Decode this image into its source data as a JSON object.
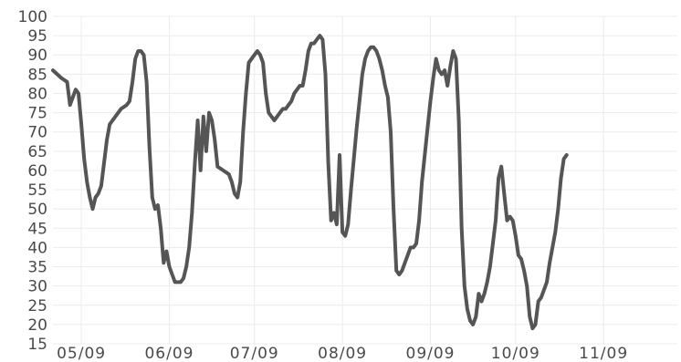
{
  "chart_data": {
    "type": "line",
    "title": "",
    "xlabel": "",
    "ylabel": "",
    "ylim": [
      15,
      100
    ],
    "y_ticks": [
      15,
      20,
      25,
      30,
      35,
      40,
      45,
      50,
      55,
      60,
      65,
      70,
      75,
      80,
      85,
      90,
      95,
      100
    ],
    "x_range": [
      0,
      220
    ],
    "x_tick_labels": [
      {
        "x": 10,
        "label": "05/09"
      },
      {
        "x": 41,
        "label": "06/09"
      },
      {
        "x": 71,
        "label": "07/09"
      },
      {
        "x": 102,
        "label": "08/09"
      },
      {
        "x": 133,
        "label": "09/09"
      },
      {
        "x": 163,
        "label": "10/09"
      },
      {
        "x": 194,
        "label": "11/09"
      }
    ],
    "grid": true,
    "line_color": "#555555",
    "series": [
      {
        "values": [
          [
            0,
            86
          ],
          [
            3,
            84
          ],
          [
            5,
            83
          ],
          [
            6,
            77
          ],
          [
            8,
            81
          ],
          [
            9,
            80
          ],
          [
            10,
            72
          ],
          [
            11,
            63
          ],
          [
            12,
            57
          ],
          [
            13,
            53
          ],
          [
            14,
            50
          ],
          [
            15,
            53
          ],
          [
            16,
            54
          ],
          [
            17,
            56
          ],
          [
            18,
            62
          ],
          [
            19,
            68
          ],
          [
            20,
            72
          ],
          [
            22,
            74
          ],
          [
            24,
            76
          ],
          [
            26,
            77
          ],
          [
            27,
            78
          ],
          [
            28,
            83
          ],
          [
            29,
            89
          ],
          [
            30,
            91
          ],
          [
            31,
            91
          ],
          [
            32,
            90
          ],
          [
            33,
            83
          ],
          [
            34,
            66
          ],
          [
            35,
            53
          ],
          [
            36,
            50
          ],
          [
            37,
            51
          ],
          [
            38,
            45
          ],
          [
            39,
            36
          ],
          [
            40,
            39
          ],
          [
            41,
            35
          ],
          [
            42,
            33
          ],
          [
            43,
            31
          ],
          [
            45,
            31
          ],
          [
            46,
            32
          ],
          [
            47,
            35
          ],
          [
            48,
            40
          ],
          [
            49,
            49
          ],
          [
            50,
            62
          ],
          [
            51,
            73
          ],
          [
            52,
            60
          ],
          [
            53,
            74
          ],
          [
            54,
            65
          ],
          [
            55,
            75
          ],
          [
            56,
            73
          ],
          [
            57,
            68
          ],
          [
            58,
            61
          ],
          [
            60,
            60
          ],
          [
            62,
            59
          ],
          [
            63,
            57
          ],
          [
            64,
            54
          ],
          [
            65,
            53
          ],
          [
            66,
            57
          ],
          [
            67,
            70
          ],
          [
            68,
            80
          ],
          [
            69,
            88
          ],
          [
            70,
            89
          ],
          [
            71,
            90
          ],
          [
            72,
            91
          ],
          [
            73,
            90
          ],
          [
            74,
            88
          ],
          [
            75,
            80
          ],
          [
            76,
            75
          ],
          [
            77,
            74
          ],
          [
            78,
            73
          ],
          [
            79,
            74
          ],
          [
            80,
            75
          ],
          [
            81,
            76
          ],
          [
            82,
            76
          ],
          [
            83,
            77
          ],
          [
            84,
            78
          ],
          [
            85,
            80
          ],
          [
            86,
            81
          ],
          [
            87,
            82
          ],
          [
            88,
            82
          ],
          [
            89,
            86
          ],
          [
            90,
            91
          ],
          [
            91,
            93
          ],
          [
            92,
            93
          ],
          [
            93,
            94
          ],
          [
            94,
            95
          ],
          [
            95,
            94
          ],
          [
            96,
            85
          ],
          [
            97,
            62
          ],
          [
            98,
            47
          ],
          [
            99,
            49
          ],
          [
            100,
            46
          ],
          [
            101,
            64
          ],
          [
            102,
            44
          ],
          [
            103,
            43
          ],
          [
            104,
            46
          ],
          [
            105,
            55
          ],
          [
            106,
            63
          ],
          [
            107,
            71
          ],
          [
            108,
            78
          ],
          [
            109,
            85
          ],
          [
            110,
            89
          ],
          [
            111,
            91
          ],
          [
            112,
            92
          ],
          [
            113,
            92
          ],
          [
            114,
            91
          ],
          [
            115,
            89
          ],
          [
            116,
            86
          ],
          [
            117,
            82
          ],
          [
            118,
            79
          ],
          [
            119,
            70
          ],
          [
            120,
            50
          ],
          [
            121,
            34
          ],
          [
            122,
            33
          ],
          [
            123,
            34
          ],
          [
            124,
            36
          ],
          [
            125,
            38
          ],
          [
            126,
            40
          ],
          [
            127,
            40
          ],
          [
            128,
            41
          ],
          [
            129,
            47
          ],
          [
            130,
            57
          ],
          [
            131,
            64
          ],
          [
            132,
            71
          ],
          [
            133,
            78
          ],
          [
            134,
            84
          ],
          [
            135,
            89
          ],
          [
            136,
            86
          ],
          [
            137,
            85
          ],
          [
            138,
            86
          ],
          [
            139,
            82
          ],
          [
            140,
            87
          ],
          [
            141,
            91
          ],
          [
            142,
            89
          ],
          [
            143,
            73
          ],
          [
            144,
            45
          ],
          [
            145,
            30
          ],
          [
            146,
            24
          ],
          [
            147,
            21
          ],
          [
            148,
            20
          ],
          [
            149,
            22
          ],
          [
            150,
            28
          ],
          [
            151,
            26
          ],
          [
            152,
            28
          ],
          [
            153,
            31
          ],
          [
            154,
            35
          ],
          [
            155,
            41
          ],
          [
            156,
            47
          ],
          [
            157,
            58
          ],
          [
            158,
            61
          ],
          [
            159,
            54
          ],
          [
            160,
            47
          ],
          [
            161,
            48
          ],
          [
            162,
            47
          ],
          [
            163,
            43
          ],
          [
            164,
            38
          ],
          [
            165,
            37
          ],
          [
            166,
            34
          ],
          [
            167,
            30
          ],
          [
            168,
            22
          ],
          [
            169,
            19
          ],
          [
            170,
            20
          ],
          [
            171,
            26
          ],
          [
            172,
            27
          ],
          [
            173,
            29
          ],
          [
            174,
            31
          ],
          [
            175,
            36
          ],
          [
            176,
            40
          ],
          [
            177,
            44
          ],
          [
            178,
            50
          ],
          [
            179,
            58
          ],
          [
            180,
            63
          ],
          [
            181,
            64
          ]
        ]
      }
    ]
  }
}
